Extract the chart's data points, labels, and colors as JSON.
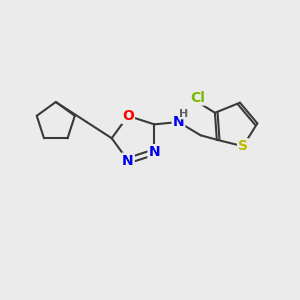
{
  "background_color": "#ebebeb",
  "bond_color": "#3a3a3a",
  "bond_width": 1.5,
  "atom_colors": {
    "O": "#ff0000",
    "N": "#0000ee",
    "S": "#bbbb00",
    "Cl": "#77bb00",
    "C": "#3a3a3a",
    "H": "#606060"
  },
  "font_size": 9,
  "figsize": [
    3.0,
    3.0
  ],
  "dpi": 100
}
